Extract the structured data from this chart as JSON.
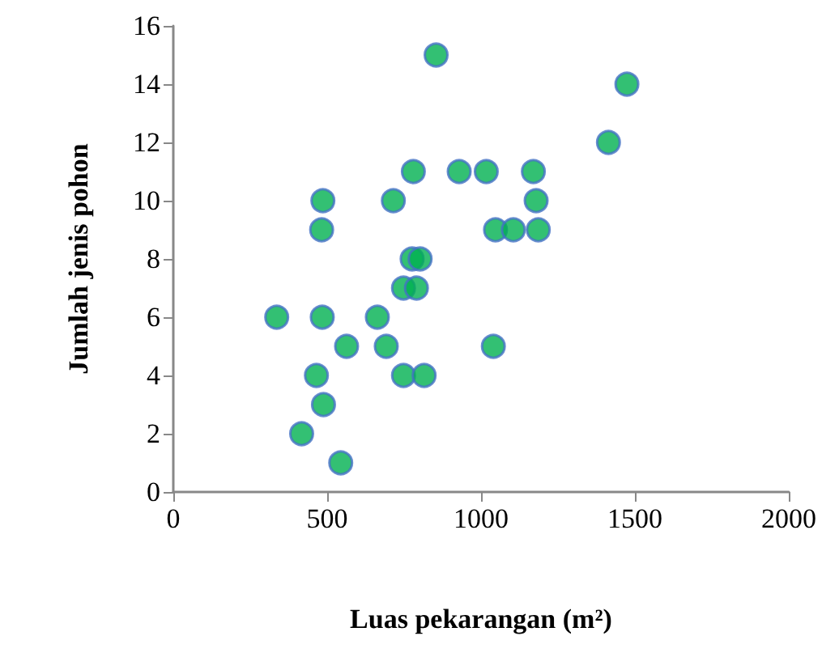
{
  "chart_data": {
    "type": "scatter",
    "xlabel": "Luas pekarangan (m²)",
    "ylabel": "Jumlah jenis pohon",
    "x": [
      854,
      780,
      929,
      1017,
      486,
      715,
      482,
      1047,
      776,
      802,
      748,
      790,
      336,
      484,
      663,
      563,
      692,
      1040,
      465,
      748,
      815,
      488,
      417,
      544,
      1474,
      1414,
      1170,
      1179,
      1105,
      1186
    ],
    "values": [
      15,
      11,
      11,
      11,
      10,
      10,
      9,
      9,
      8,
      8,
      7,
      7,
      6,
      6,
      6,
      5,
      5,
      5,
      4,
      4,
      4,
      3,
      2,
      1,
      14,
      12,
      11,
      10,
      9,
      9
    ],
    "color": "#00b050",
    "marker": "circle",
    "grid": false,
    "xlim": [
      0,
      2000
    ],
    "xticks": [
      0,
      500,
      1000,
      1500,
      2000
    ],
    "ylim": [
      0,
      16
    ],
    "yticks": [
      0,
      2,
      4,
      6,
      8,
      10,
      12,
      14,
      16
    ]
  }
}
